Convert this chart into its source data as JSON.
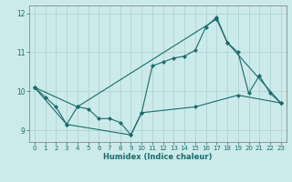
{
  "xlabel": "Humidex (Indice chaleur)",
  "background_color": "#cceaea",
  "grid_color": "#aacfcf",
  "line_color": "#1a6b6b",
  "xlim": [
    -0.5,
    23.5
  ],
  "ylim": [
    8.7,
    12.2
  ],
  "yticks": [
    9,
    10,
    11,
    12
  ],
  "xticks": [
    0,
    1,
    2,
    3,
    4,
    5,
    6,
    7,
    8,
    9,
    10,
    11,
    12,
    13,
    14,
    15,
    16,
    17,
    18,
    19,
    20,
    21,
    22,
    23
  ],
  "series": [
    {
      "x": [
        0,
        1,
        2,
        3,
        4,
        5,
        6,
        7,
        8,
        9,
        10,
        11,
        12,
        13,
        14,
        15,
        16,
        17,
        18,
        19,
        20,
        21,
        22,
        23
      ],
      "y": [
        10.1,
        9.85,
        9.6,
        9.15,
        9.6,
        9.55,
        9.3,
        9.3,
        9.2,
        8.88,
        9.45,
        10.65,
        10.75,
        10.85,
        10.9,
        11.05,
        11.65,
        11.9,
        11.25,
        11.0,
        9.95,
        10.4,
        9.95,
        9.7
      ]
    },
    {
      "x": [
        0,
        4,
        17,
        18,
        23
      ],
      "y": [
        10.1,
        9.6,
        11.85,
        11.25,
        9.7
      ]
    },
    {
      "x": [
        0,
        3,
        9,
        10,
        15,
        19,
        23
      ],
      "y": [
        10.1,
        9.15,
        8.88,
        9.45,
        9.6,
        9.9,
        9.7
      ]
    }
  ]
}
